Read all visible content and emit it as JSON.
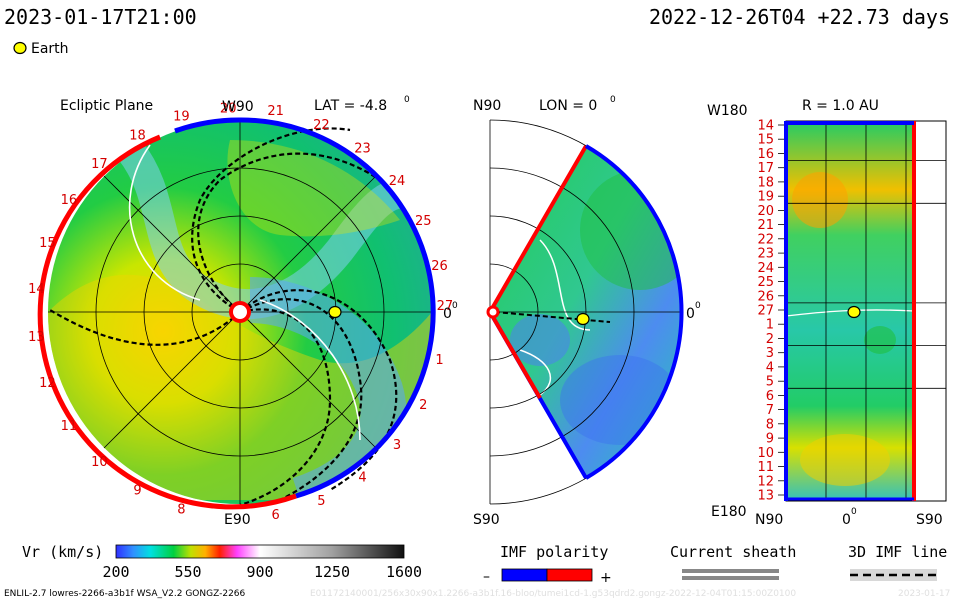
{
  "header": {
    "left_time": "2023-01-17T21:00",
    "right_time": "2022-12-26T04 +22.73 days",
    "earth_label": "Earth"
  },
  "panels": {
    "ecliptic": {
      "title": "Ecliptic Plane",
      "lat_label": "LAT = -4.8",
      "lat_deg": "0",
      "top_label": "W90",
      "bottom_label": "E90",
      "zero_label": "0",
      "zero_deg": "0",
      "carrington_days": [
        "1",
        "2",
        "3",
        "4",
        "5",
        "6",
        "8",
        "9",
        "10",
        "11",
        "12",
        "13",
        "14",
        "15",
        "16",
        "17",
        "18",
        "19",
        "20",
        "21",
        "22",
        "23",
        "24",
        "25",
        "26",
        "27"
      ]
    },
    "meridional": {
      "top_label": "N90",
      "lon_label": "LON = 0",
      "lon_deg": "0",
      "bottom_label": "S90",
      "zero_label": "0",
      "zero_deg": "0"
    },
    "radial": {
      "top_left_label": "W180",
      "r_label": "R = 1.0 AU",
      "bottom_left_label": "E180",
      "bottom_labels": [
        "N90",
        "0",
        "S90"
      ],
      "bottom_zero_deg": "0",
      "rows": [
        "14",
        "15",
        "16",
        "17",
        "18",
        "19",
        "20",
        "21",
        "22",
        "23",
        "24",
        "25",
        "26",
        "27",
        "1",
        "2",
        "3",
        "4",
        "5",
        "6",
        "7",
        "8",
        "9",
        "10",
        "11",
        "12",
        "13"
      ]
    }
  },
  "colorbar": {
    "label": "Vr (km/s)",
    "ticks": [
      "200",
      "550",
      "900",
      "1250",
      "1600"
    ],
    "tick_values": [
      200,
      550,
      900,
      1250,
      1600
    ],
    "range": [
      200,
      1600
    ]
  },
  "legend": {
    "imf_title": "IMF polarity",
    "imf_minus": "–",
    "imf_plus": "+",
    "imf_colors": [
      "#0000ff",
      "#ff0000"
    ],
    "sheath_title": "Current sheath",
    "imf_line_title": "3D IMF line"
  },
  "footer": {
    "left": "ENLIL-2.7 lowres-2266-a3b1f WSA_V2.2 GONGZ-2266",
    "faded": "E01172140001/256x30x90x1.2266-a3b1f.16-bloo/tumei1cd-1.g53qdrd2.gongz-2022-12-04T01:15:00Z0100",
    "faded_right": "2023-01-17"
  },
  "colors": {
    "text_red": "#d40000",
    "earth": "#ffff00",
    "imf_negative": "#0000ff",
    "imf_positive": "#ff0000"
  },
  "chart_data": [
    {
      "type": "heatmap",
      "title": "Ecliptic Plane",
      "subtitle": "LAT = -4.8",
      "quantity": "Vr (km/s)",
      "value_range": [
        200,
        1600
      ],
      "earth_position_deg": 0
    },
    {
      "type": "heatmap",
      "title": "LON = 0",
      "quantity": "Vr (km/s)",
      "value_range": [
        200,
        1600
      ]
    },
    {
      "type": "heatmap",
      "title": "R = 1.0 AU",
      "quantity": "Vr (km/s)",
      "value_range": [
        200,
        1600
      ],
      "y_tick_labels": [
        "14",
        "15",
        "16",
        "17",
        "18",
        "19",
        "20",
        "21",
        "22",
        "23",
        "24",
        "25",
        "26",
        "27",
        "1",
        "2",
        "3",
        "4",
        "5",
        "6",
        "7",
        "8",
        "9",
        "10",
        "11",
        "12",
        "13"
      ],
      "x_tick_labels": [
        "N90",
        "0",
        "S90"
      ]
    }
  ]
}
